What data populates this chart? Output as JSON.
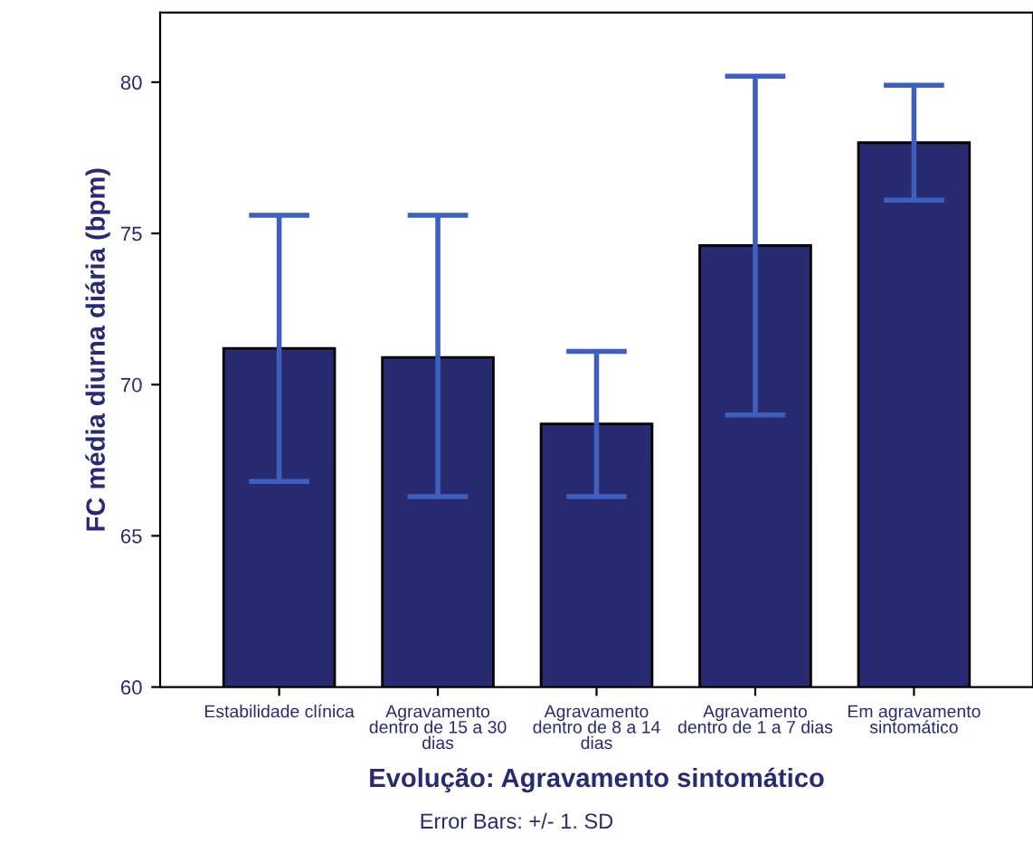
{
  "chart_data": {
    "type": "bar",
    "xlabel": "Evolução: Agravamento sintomático",
    "ylabel": "FC média diurna diária (bpm)",
    "categories": [
      "Estabilidade clínica",
      "Agravamento\ndentro de 15 a 30\ndias",
      "Agravamento\ndentro de 8 a 14\ndias",
      "Agravamento\ndentro de 1 a 7 dias",
      "Em agravamento\nsintomático"
    ],
    "values": [
      71.2,
      70.9,
      68.7,
      74.6,
      78.0
    ],
    "errors": [
      [
        66.8,
        75.6
      ],
      [
        66.3,
        75.6
      ],
      [
        66.3,
        71.1
      ],
      [
        69.0,
        80.2
      ],
      [
        76.1,
        79.9
      ]
    ],
    "color": "#282a72",
    "ylim": [
      60,
      82.3
    ],
    "yticks": [
      60,
      65,
      70,
      75,
      80
    ],
    "grid": false,
    "annotations": [
      "Error Bars: +/- 1. SD"
    ]
  }
}
